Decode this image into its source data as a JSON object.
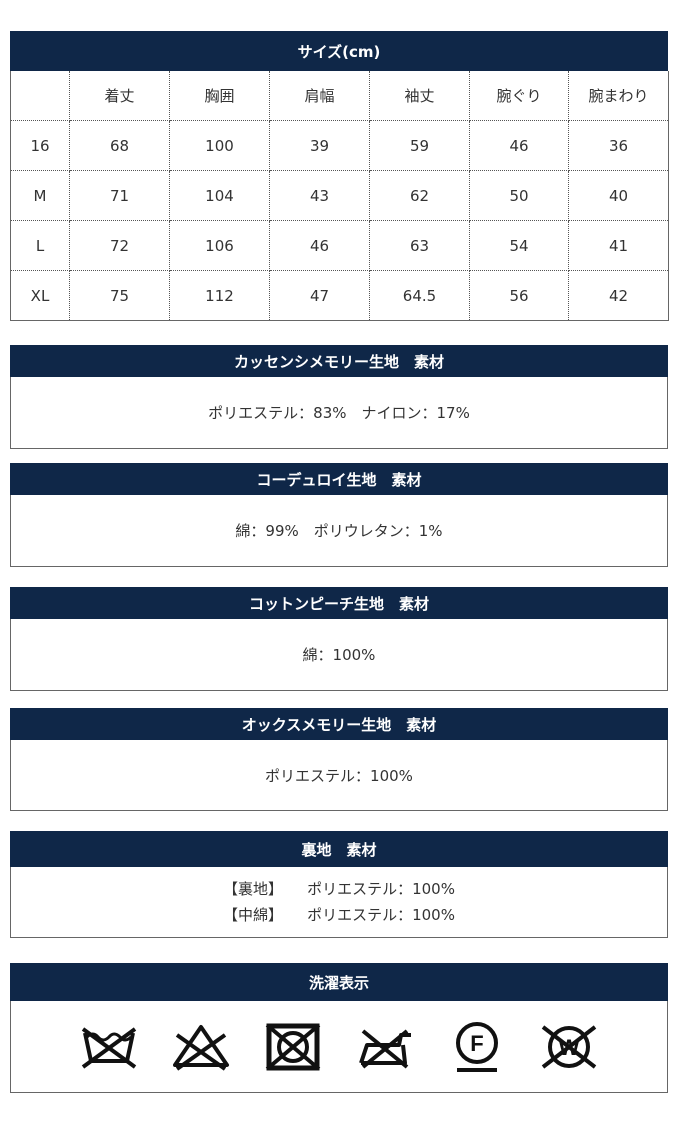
{
  "size": {
    "title": "サイズ(cm)",
    "headers": [
      "",
      "着丈",
      "胸囲",
      "肩幅",
      "袖丈",
      "腕ぐり",
      "腕まわり"
    ],
    "rows": [
      [
        "16",
        "68",
        "100",
        "39",
        "59",
        "46",
        "36"
      ],
      [
        "M",
        "71",
        "104",
        "43",
        "62",
        "50",
        "40"
      ],
      [
        "L",
        "72",
        "106",
        "46",
        "63",
        "54",
        "41"
      ],
      [
        "XL",
        "75",
        "112",
        "47",
        "64.5",
        "56",
        "42"
      ]
    ]
  },
  "materials": [
    {
      "title": "カッセンシメモリー生地　素材",
      "text": "ポリエステル：83%　ナイロン：17%"
    },
    {
      "title": "コーデュロイ生地　素材",
      "text": "綿：99%　ポリウレタン：1%"
    },
    {
      "title": "コットンピーチ生地　素材",
      "text": "綿：100%"
    },
    {
      "title": "オックスメモリー生地　素材",
      "text": "ポリエステル：100%"
    }
  ],
  "lining": {
    "title": "裏地　素材",
    "lines": [
      {
        "label": "【裏地】",
        "value": "ポリエステル：100%"
      },
      {
        "label": "【中綿】",
        "value": "ポリエステル：100%"
      }
    ]
  },
  "care": {
    "title": "洗濯表示",
    "icons": [
      "no-wash-icon",
      "no-bleach-icon",
      "no-tumble-dry-icon",
      "no-iron-icon",
      "dry-clean-f-icon",
      "no-wet-clean-icon"
    ],
    "dry_clean_letter": "F",
    "wet_clean_letter": "W"
  },
  "colors": {
    "header_bg": "#0f2748",
    "header_text": "#ffffff",
    "border": "#666666"
  }
}
